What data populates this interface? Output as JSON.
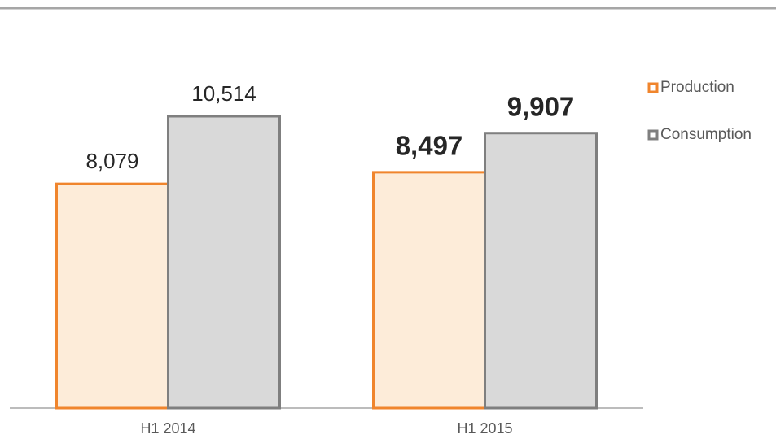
{
  "chart_data": {
    "type": "bar",
    "categories": [
      "H1 2014",
      "H1 2015"
    ],
    "series": [
      {
        "name": "Production",
        "color": "#f0852d",
        "fill": "#fdecd9",
        "values": [
          8079,
          8497
        ],
        "value_labels": [
          "8,079",
          "8,497"
        ]
      },
      {
        "name": "Consumption",
        "color": "#7f7f7f",
        "fill": "#d9d9d9",
        "values": [
          10514,
          9907
        ],
        "value_labels": [
          "10,514",
          "9,907"
        ]
      }
    ],
    "legend": "right"
  }
}
